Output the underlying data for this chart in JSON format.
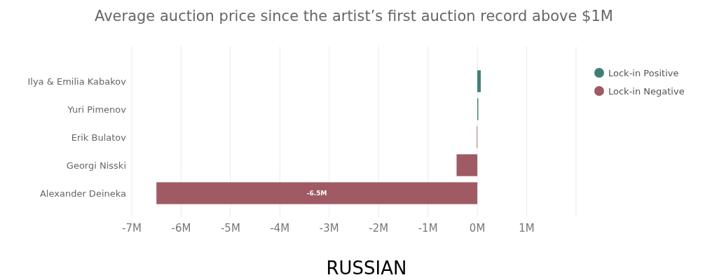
{
  "chart_data": {
    "type": "bar",
    "orientation": "horizontal",
    "stacked": true,
    "title": "Average auction price since the artist’s first auction record above $1M",
    "categories": [
      "Ilya & Emilia Kabakov",
      "Yuri Pimenov",
      "Erik Bulatov",
      "Georgi Nisski",
      "Alexander Deineka"
    ],
    "series": [
      {
        "name": "Lock-in Positive",
        "color": "#3f7f76",
        "values": [
          0.07,
          0.02,
          null,
          null,
          null
        ]
      },
      {
        "name": "Lock-in Negative",
        "color": "#a05a64",
        "values": [
          null,
          null,
          -0.01,
          -0.42,
          -6.5
        ],
        "value_labels": [
          null,
          null,
          null,
          null,
          "-6.5M"
        ]
      }
    ],
    "xlim": [
      -7,
      2
    ],
    "xticks": [
      {
        "value": -7,
        "label": "-7M"
      },
      {
        "value": -6,
        "label": "-6M"
      },
      {
        "value": -5,
        "label": "-5M"
      },
      {
        "value": -4,
        "label": "-4M"
      },
      {
        "value": -3,
        "label": "-3M"
      },
      {
        "value": -2,
        "label": "-2M"
      },
      {
        "value": -1,
        "label": "-1M"
      },
      {
        "value": 0,
        "label": "0M"
      },
      {
        "value": 1,
        "label": "1M"
      },
      {
        "value": 2,
        "label": null
      }
    ],
    "grid": "x",
    "legend": "top right",
    "annotations": [
      "RUSSIAN"
    ]
  }
}
